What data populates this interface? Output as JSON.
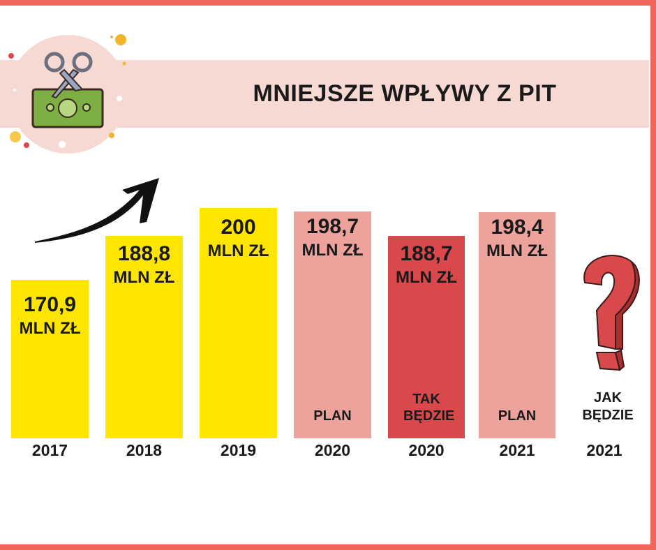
{
  "title": "MNIEJSZE WPŁYWY Z PIT",
  "colors": {
    "frame": "#f0665a",
    "banner": "#f7d9d4",
    "actual": "#ffe600",
    "plan": "#eda39b",
    "estimate": "#d9484a"
  },
  "chart_data": {
    "type": "bar",
    "title": "MNIEJSZE WPŁYWY Z PIT",
    "categories": [
      "2017",
      "2018",
      "2019",
      "2020",
      "2020",
      "2021",
      "2021"
    ],
    "bars": [
      {
        "year": "2017",
        "value": 170.9,
        "num_label": "170,9",
        "unit": "MLN ZŁ",
        "note": "",
        "color": "#ffe600"
      },
      {
        "year": "2018",
        "value": 188.8,
        "num_label": "188,8",
        "unit": "MLN ZŁ",
        "note": "",
        "color": "#ffe600"
      },
      {
        "year": "2019",
        "value": 200,
        "num_label": "200",
        "unit": "MLN ZŁ",
        "note": "",
        "color": "#ffe600"
      },
      {
        "year": "2020",
        "value": 198.7,
        "num_label": "198,7",
        "unit": "MLN ZŁ",
        "note": "PLAN",
        "color": "#eda39b"
      },
      {
        "year": "2020",
        "value": 188.7,
        "num_label": "188,7",
        "unit": "MLN ZŁ",
        "note": "TAK BĘDZIE",
        "color": "#d9484a"
      },
      {
        "year": "2021",
        "value": 198.4,
        "num_label": "198,4",
        "unit": "MLN ZŁ",
        "note": "PLAN",
        "color": "#eda39b"
      },
      {
        "year": "2021",
        "value": null,
        "num_label": "",
        "unit": "",
        "note": "JAK BĘDZIE",
        "color": "question-mark-icon"
      }
    ],
    "grid": false,
    "legend": "none"
  }
}
